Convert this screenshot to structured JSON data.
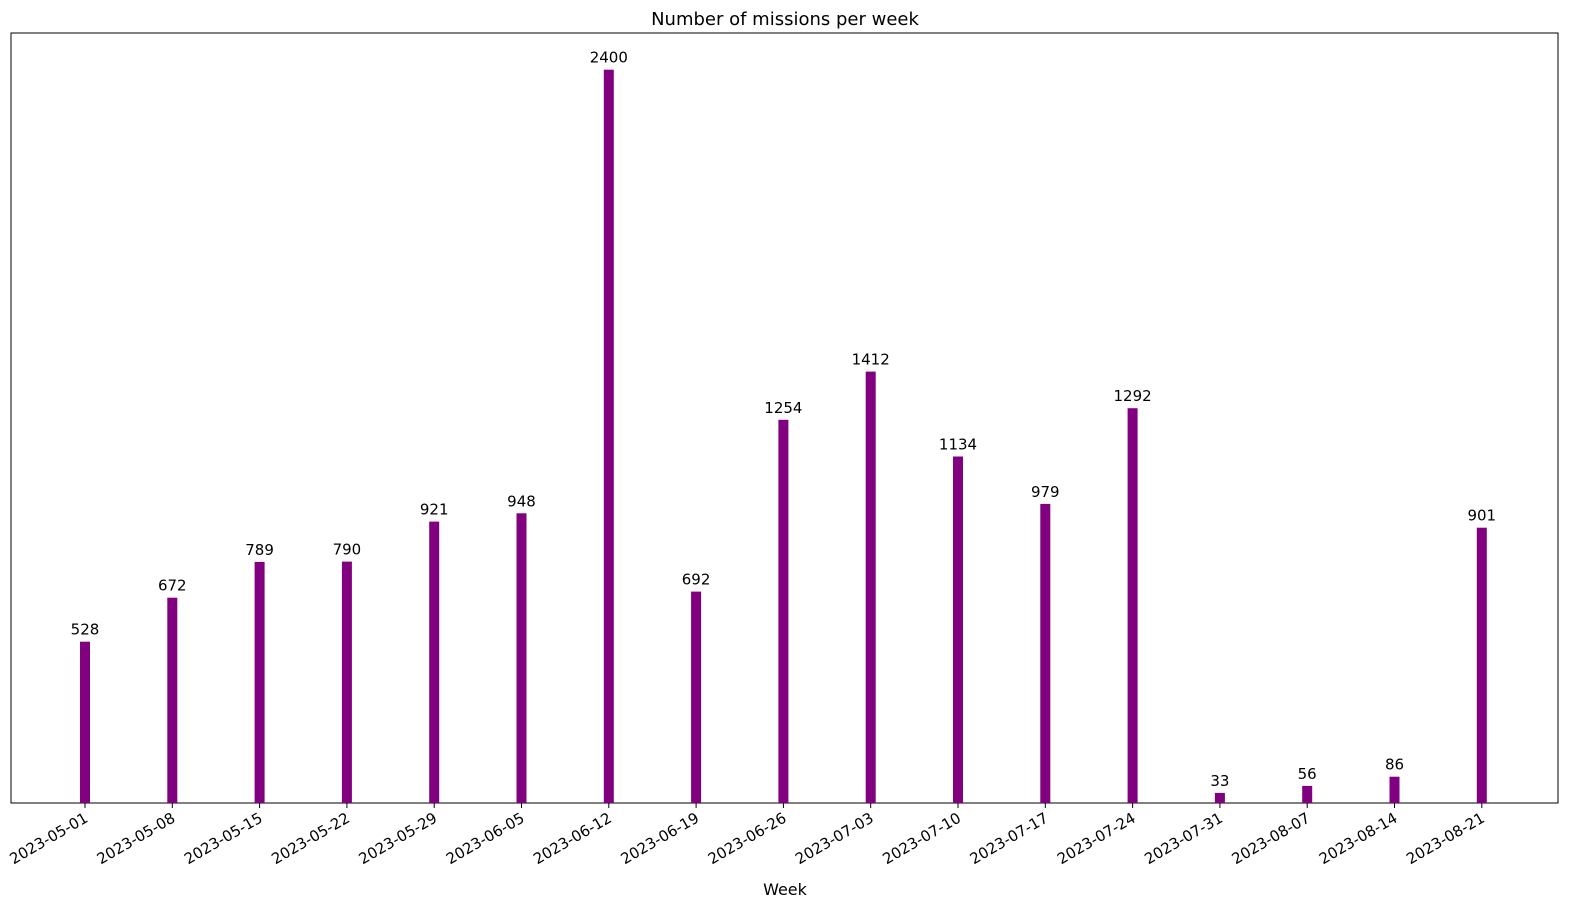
{
  "chart_data": {
    "type": "bar",
    "title": "Number of missions per week",
    "xlabel": "Week",
    "ylabel": "",
    "categories": [
      "2023-05-01",
      "2023-05-08",
      "2023-05-15",
      "2023-05-22",
      "2023-05-29",
      "2023-06-05",
      "2023-06-12",
      "2023-06-19",
      "2023-06-26",
      "2023-07-03",
      "2023-07-10",
      "2023-07-17",
      "2023-07-24",
      "2023-07-31",
      "2023-08-07",
      "2023-08-14",
      "2023-08-21"
    ],
    "values": [
      528,
      672,
      789,
      790,
      921,
      948,
      2400,
      692,
      1254,
      1412,
      1134,
      979,
      1292,
      33,
      56,
      86,
      901
    ],
    "data_labels": [
      "528",
      "672",
      "789",
      "790",
      "921",
      "948",
      "2400",
      "692",
      "1254",
      "1412",
      "1134",
      "979",
      "1292",
      "33",
      "56",
      "86",
      "901"
    ],
    "ylim": [
      0,
      2520
    ],
    "grid": false,
    "y_ticks_visible": false,
    "bar_color": "#800080",
    "x_tick_rotation_deg": 30
  }
}
